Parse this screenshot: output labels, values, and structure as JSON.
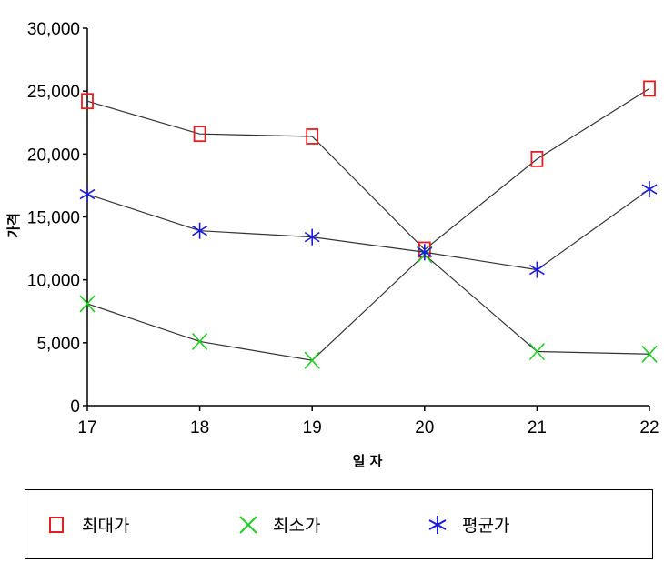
{
  "chart_data": {
    "type": "line",
    "xlabel": "일 자",
    "ylabel": "가격",
    "categories": [
      "17",
      "18",
      "19",
      "20",
      "21",
      "22"
    ],
    "ylim": [
      0,
      30000
    ],
    "yticks": [
      "0",
      "5,000",
      "10,000",
      "15,000",
      "20,000",
      "25,000",
      "30,000"
    ],
    "ytick_values": [
      0,
      5000,
      10000,
      15000,
      20000,
      25000,
      30000
    ],
    "grid": false,
    "legend_position": "bottom",
    "series": [
      {
        "name": "최대가",
        "marker": "square",
        "color": "#e02020",
        "values": [
          24200,
          21600,
          21400,
          12400,
          19600,
          25200
        ]
      },
      {
        "name": "최소가",
        "marker": "x",
        "color": "#22cc22",
        "values": [
          8100,
          5100,
          3600,
          12000,
          4300,
          4100
        ]
      },
      {
        "name": "평균가",
        "marker": "asterisk",
        "color": "#1a1ae0",
        "values": [
          16800,
          13900,
          13400,
          12200,
          10800,
          17200
        ]
      }
    ]
  }
}
